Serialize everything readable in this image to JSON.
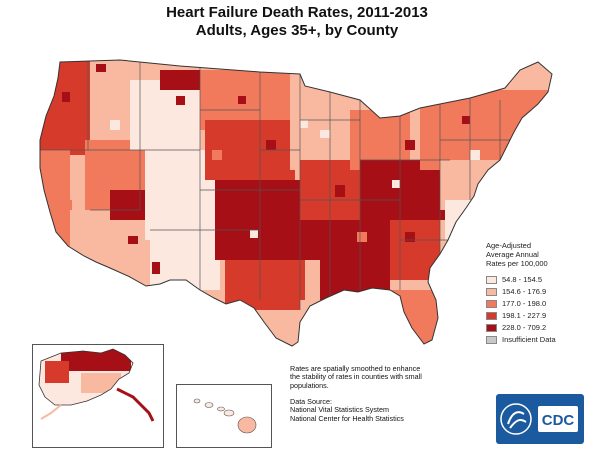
{
  "title_line1": "Heart Failure Death Rates, 2011-2013",
  "title_line2": "Adults, Ages 35+, by County",
  "legend": {
    "heading": [
      "Age-Adjusted",
      "Average Annual",
      "Rates per 100,000"
    ],
    "items": [
      {
        "label": "54.8 - 154.5",
        "color": "#fde8e0"
      },
      {
        "label": "154.6 - 176.9",
        "color": "#f9b9a0"
      },
      {
        "label": "177.0 - 198.0",
        "color": "#f17a5c"
      },
      {
        "label": "198.1 - 227.9",
        "color": "#d63a2b"
      },
      {
        "label": "228.0 - 709.2",
        "color": "#a50f15"
      },
      {
        "label": "Insufficient Data",
        "color": "#c8c8c8"
      }
    ]
  },
  "note_lines": [
    "Rates are spatially smoothed to enhance",
    "the stability of rates in counties with small",
    "populations."
  ],
  "source_lines": [
    "Data Source:",
    "National Vital Statistics System",
    "National Center for Health Statistics"
  ],
  "logo": {
    "text": "CDC",
    "color": "#1b5a9e"
  }
}
